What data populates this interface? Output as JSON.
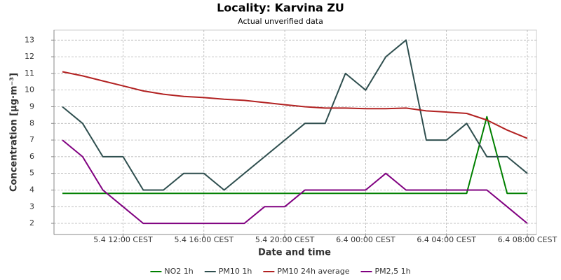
{
  "chart_data": {
    "type": "line",
    "title": "Locality: Karvina ZU",
    "subtitle": "Actual unverified data",
    "x_label": "Date and time",
    "y_label": "Concentration [µg·m⁻³]",
    "categories": [
      null,
      null,
      null,
      "5.4 12:00 CEST",
      null,
      null,
      null,
      "5.4 16:00 CEST",
      null,
      null,
      null,
      "5.4 20:00 CEST",
      null,
      null,
      null,
      "6.4 00:00 CEST",
      null,
      null,
      null,
      "6.4 04:00 CEST",
      null,
      null,
      null,
      "6.4 08:00 CEST"
    ],
    "series": [
      {
        "name": "NO2 1h",
        "color": "#008000",
        "values": [
          3.8,
          3.8,
          3.8,
          3.8,
          3.8,
          3.8,
          3.8,
          3.8,
          3.8,
          3.8,
          3.8,
          3.8,
          3.8,
          3.8,
          3.8,
          3.8,
          3.8,
          3.8,
          3.8,
          3.8,
          3.8,
          8.4,
          3.8,
          3.8
        ]
      },
      {
        "name": "PM10 1h",
        "color": "#2f4f4f",
        "values": [
          9,
          8,
          6,
          6,
          4,
          4,
          5,
          5,
          4,
          5,
          6,
          7,
          8,
          8,
          11,
          10,
          12,
          13,
          7,
          7,
          8,
          6,
          6,
          5
        ]
      },
      {
        "name": "PM10 24h average",
        "color": "#b22222",
        "values": [
          11.1,
          10.85,
          10.55,
          10.25,
          9.95,
          9.75,
          9.62,
          9.55,
          9.45,
          9.38,
          9.25,
          9.12,
          9.0,
          8.92,
          8.92,
          8.88,
          8.88,
          8.92,
          8.75,
          8.68,
          8.6,
          8.2,
          7.6,
          7.1
        ]
      },
      {
        "name": "PM2,5 1h",
        "color": "#800080",
        "values": [
          7,
          6,
          4,
          3,
          2,
          2,
          2,
          2,
          2,
          2,
          3,
          3,
          4,
          4,
          4,
          4,
          5,
          4,
          4,
          4,
          4,
          4,
          3,
          2
        ]
      }
    ],
    "ylim": [
      1.33,
      13.6
    ],
    "yticks": [
      2,
      3,
      4,
      5,
      6,
      7,
      8,
      9,
      10,
      11,
      12,
      13
    ],
    "grid": true,
    "legend": "bottom"
  }
}
